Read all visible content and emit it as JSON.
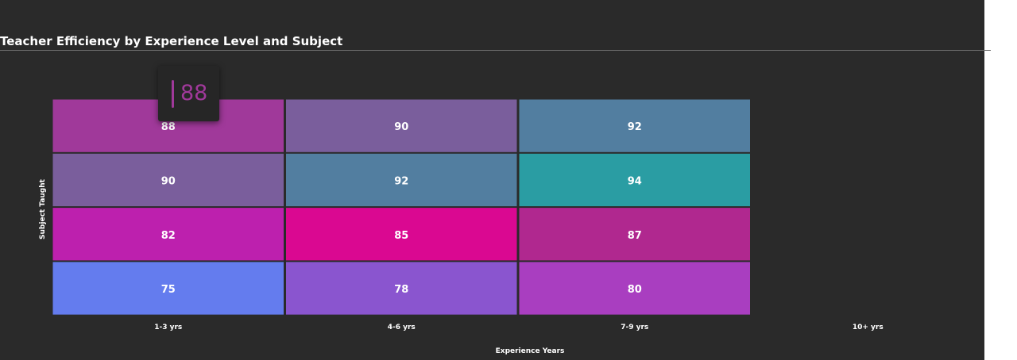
{
  "title": "Teacher Efficiency by Experience Level and Subject",
  "tooltip": {
    "value": "88",
    "color": "#a0399a"
  },
  "colors": {
    "background": "#2a2a2a",
    "text": "#ffffff",
    "cell_border": "#2a2a2a"
  },
  "chart_data": {
    "type": "heatmap",
    "title": "Teacher Efficiency by Experience Level and Subject",
    "xlabel": "Experience Years",
    "ylabel": "Subject Taught",
    "x": [
      "1-3 yrs",
      "4-6 yrs",
      "7-9 yrs",
      "10+ yrs"
    ],
    "y": [
      "",
      "",
      "",
      ""
    ],
    "values": [
      [
        88,
        90,
        92,
        null
      ],
      [
        90,
        92,
        94,
        null
      ],
      [
        82,
        85,
        87,
        null
      ],
      [
        75,
        78,
        80,
        null
      ]
    ],
    "cell_colors": [
      [
        "#a0399a",
        "#7a5e9c",
        "#527ea0",
        null
      ],
      [
        "#7a5e9c",
        "#527ea0",
        "#2a9da3",
        null
      ],
      [
        "#bd20ae",
        "#da0891",
        "#b0288f",
        null
      ],
      [
        "#647cee",
        "#8a55cf",
        "#a93ec0",
        null
      ]
    ]
  }
}
